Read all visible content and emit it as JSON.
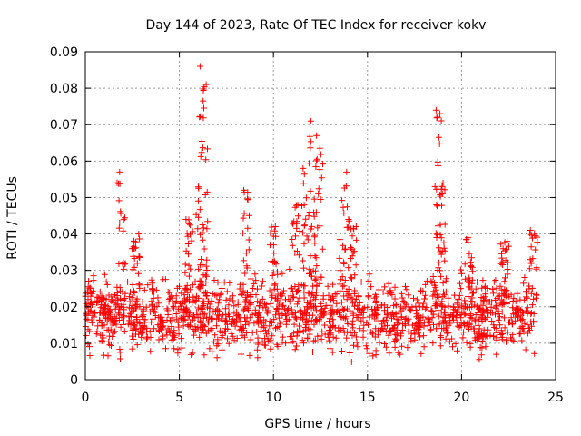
{
  "chart_data": {
    "type": "scatter",
    "title": "Day 144 of 2023, Rate Of TEC Index for receiver kokv",
    "xlabel": "GPS time / hours",
    "ylabel": "ROTI / TECUs",
    "xlim": [
      0,
      25
    ],
    "ylim": [
      0,
      0.09
    ],
    "x_ticks": [
      "0",
      "5",
      "10",
      "15",
      "20",
      "25"
    ],
    "y_ticks": [
      "0",
      "0.01",
      "0.02",
      "0.03",
      "0.04",
      "0.05",
      "0.06",
      "0.07",
      "0.08",
      "0.09"
    ],
    "grid": true,
    "marker": "+",
    "series": [
      {
        "name": "ROTI",
        "color": "#ff0000",
        "description": "dense scatter of ROTI values between 0.003 and 0.03 TECU across 0–24 h, with spikes",
        "baseline_band": [
          0.004,
          0.028
        ],
        "spikes": [
          {
            "x": 1.9,
            "peak": 0.057
          },
          {
            "x": 2.7,
            "peak": 0.04
          },
          {
            "x": 5.5,
            "peak": 0.044
          },
          {
            "x": 6.1,
            "peak": 0.086
          },
          {
            "x": 6.3,
            "peak": 0.081
          },
          {
            "x": 8.6,
            "peak": 0.052
          },
          {
            "x": 10.0,
            "peak": 0.042
          },
          {
            "x": 11.2,
            "peak": 0.048
          },
          {
            "x": 11.7,
            "peak": 0.058
          },
          {
            "x": 12.1,
            "peak": 0.071
          },
          {
            "x": 12.4,
            "peak": 0.067
          },
          {
            "x": 13.7,
            "peak": 0.057
          },
          {
            "x": 14.2,
            "peak": 0.044
          },
          {
            "x": 18.7,
            "peak": 0.074
          },
          {
            "x": 18.9,
            "peak": 0.054
          },
          {
            "x": 20.4,
            "peak": 0.039
          },
          {
            "x": 22.3,
            "peak": 0.038
          },
          {
            "x": 23.8,
            "peak": 0.041
          }
        ]
      }
    ]
  }
}
